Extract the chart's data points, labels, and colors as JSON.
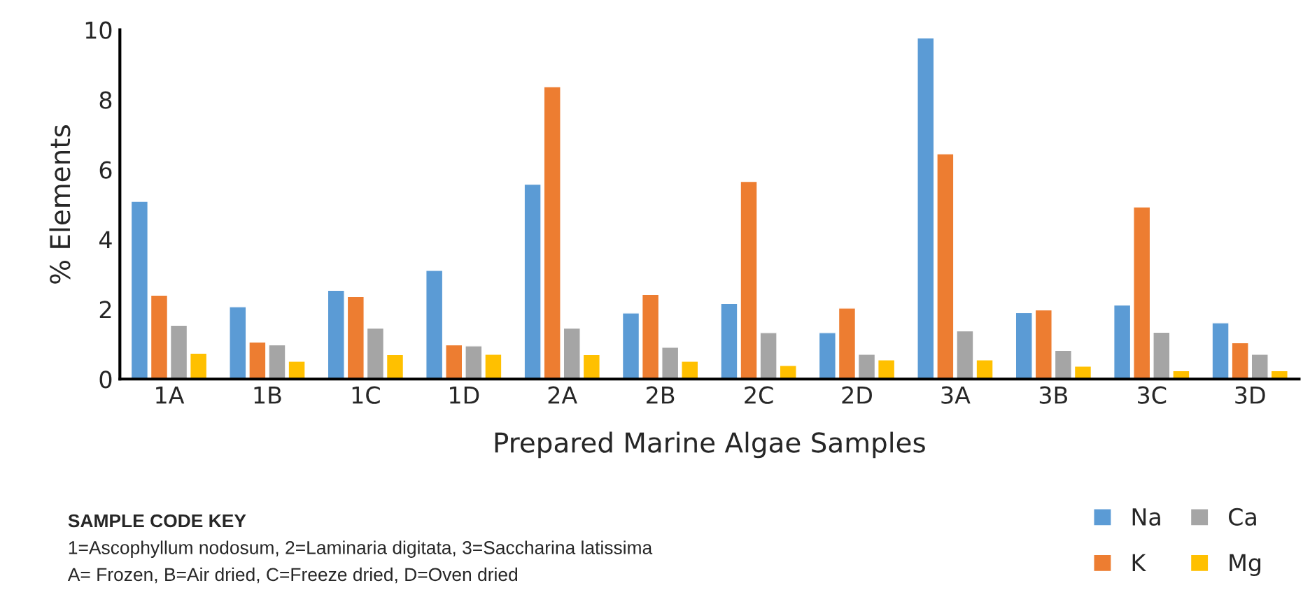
{
  "chart_data": {
    "type": "bar",
    "xlabel": "Prepared Marine Algae Samples",
    "ylabel": "% Elements",
    "categories": [
      "1A",
      "1B",
      "1C",
      "1D",
      "2A",
      "2B",
      "2C",
      "2D",
      "3A",
      "3B",
      "3C",
      "3D"
    ],
    "series": [
      {
        "name": "Na",
        "color": "#5b9bd5",
        "values": [
          5.09,
          2.07,
          2.54,
          3.11,
          5.58,
          1.89,
          2.16,
          1.33,
          9.77,
          1.9,
          2.12,
          1.61
        ]
      },
      {
        "name": "K",
        "color": "#ed7d31",
        "values": [
          2.4,
          1.06,
          2.36,
          0.98,
          8.37,
          2.42,
          5.66,
          2.03,
          6.45,
          1.98,
          4.93,
          1.04
        ]
      },
      {
        "name": "Ca",
        "color": "#a5a5a5",
        "values": [
          1.54,
          0.98,
          1.46,
          0.95,
          1.46,
          0.91,
          1.33,
          0.71,
          1.38,
          0.82,
          1.34,
          0.71
        ]
      },
      {
        "name": "Mg",
        "color": "#ffc000",
        "values": [
          0.74,
          0.51,
          0.7,
          0.71,
          0.7,
          0.51,
          0.39,
          0.55,
          0.55,
          0.37,
          0.24,
          0.24
        ]
      }
    ],
    "ylim": [
      0,
      10
    ],
    "yticks": [
      0,
      2,
      4,
      6,
      8,
      10
    ],
    "grid": false,
    "legend": "bottom right",
    "annotations": [
      "SAMPLE CODE KEY",
      "1=Ascophyllum nodosum, 2=Laminaria digitata, 3=Saccharina latissima",
      "A= Frozen, B=Air dried, C=Freeze dried, D=Oven dried"
    ]
  }
}
